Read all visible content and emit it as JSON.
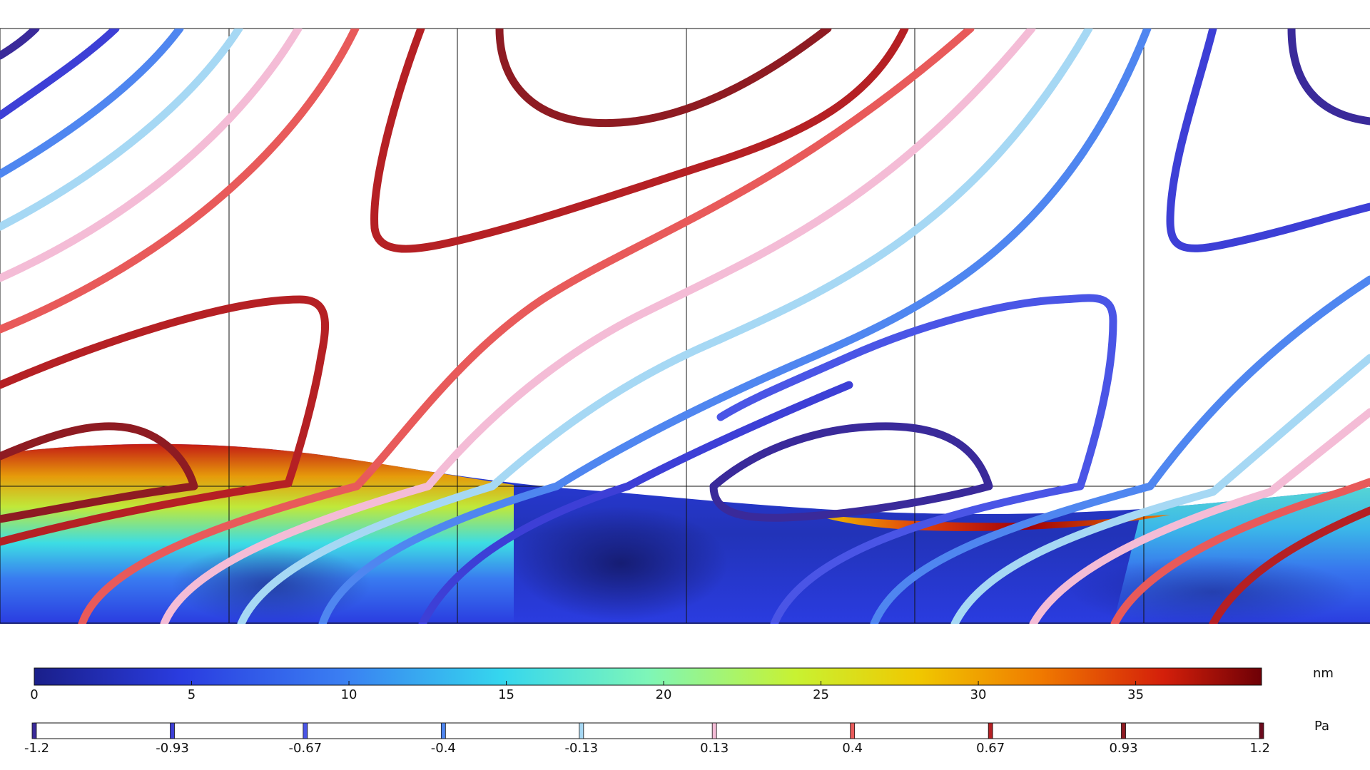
{
  "chart_data": {
    "type": "heatmap",
    "title": "",
    "surface_colorbar": {
      "unit": "nm",
      "range": [
        0,
        39
      ],
      "colormap": "rainbow",
      "ticks": [
        0,
        5,
        10,
        15,
        20,
        25,
        30,
        35
      ],
      "tick_labels": [
        "0",
        "5",
        "10",
        "15",
        "20",
        "25",
        "30",
        "35"
      ]
    },
    "contour_colorbar": {
      "unit": "Pa",
      "range": [
        -1.2,
        1.2
      ],
      "levels": [
        -1.2,
        -0.93,
        -0.67,
        -0.4,
        -0.13,
        0.13,
        0.4,
        0.67,
        0.93,
        1.2
      ],
      "level_labels": [
        "-1.2",
        "-0.93",
        "-0.67",
        "-0.4",
        "-0.13",
        "0.13",
        "0.4",
        "0.67",
        "0.93",
        "1.2"
      ],
      "level_colors": [
        "#3a2a9a",
        "#3d3fd6",
        "#4a55e6",
        "#4f86f0",
        "#a6d8f4",
        "#f4bcd6",
        "#e85a5a",
        "#b52024",
        "#8e1b22",
        "#6a0a1c"
      ]
    },
    "grid": true,
    "grid_columns": 6,
    "grid_rows": 2
  }
}
